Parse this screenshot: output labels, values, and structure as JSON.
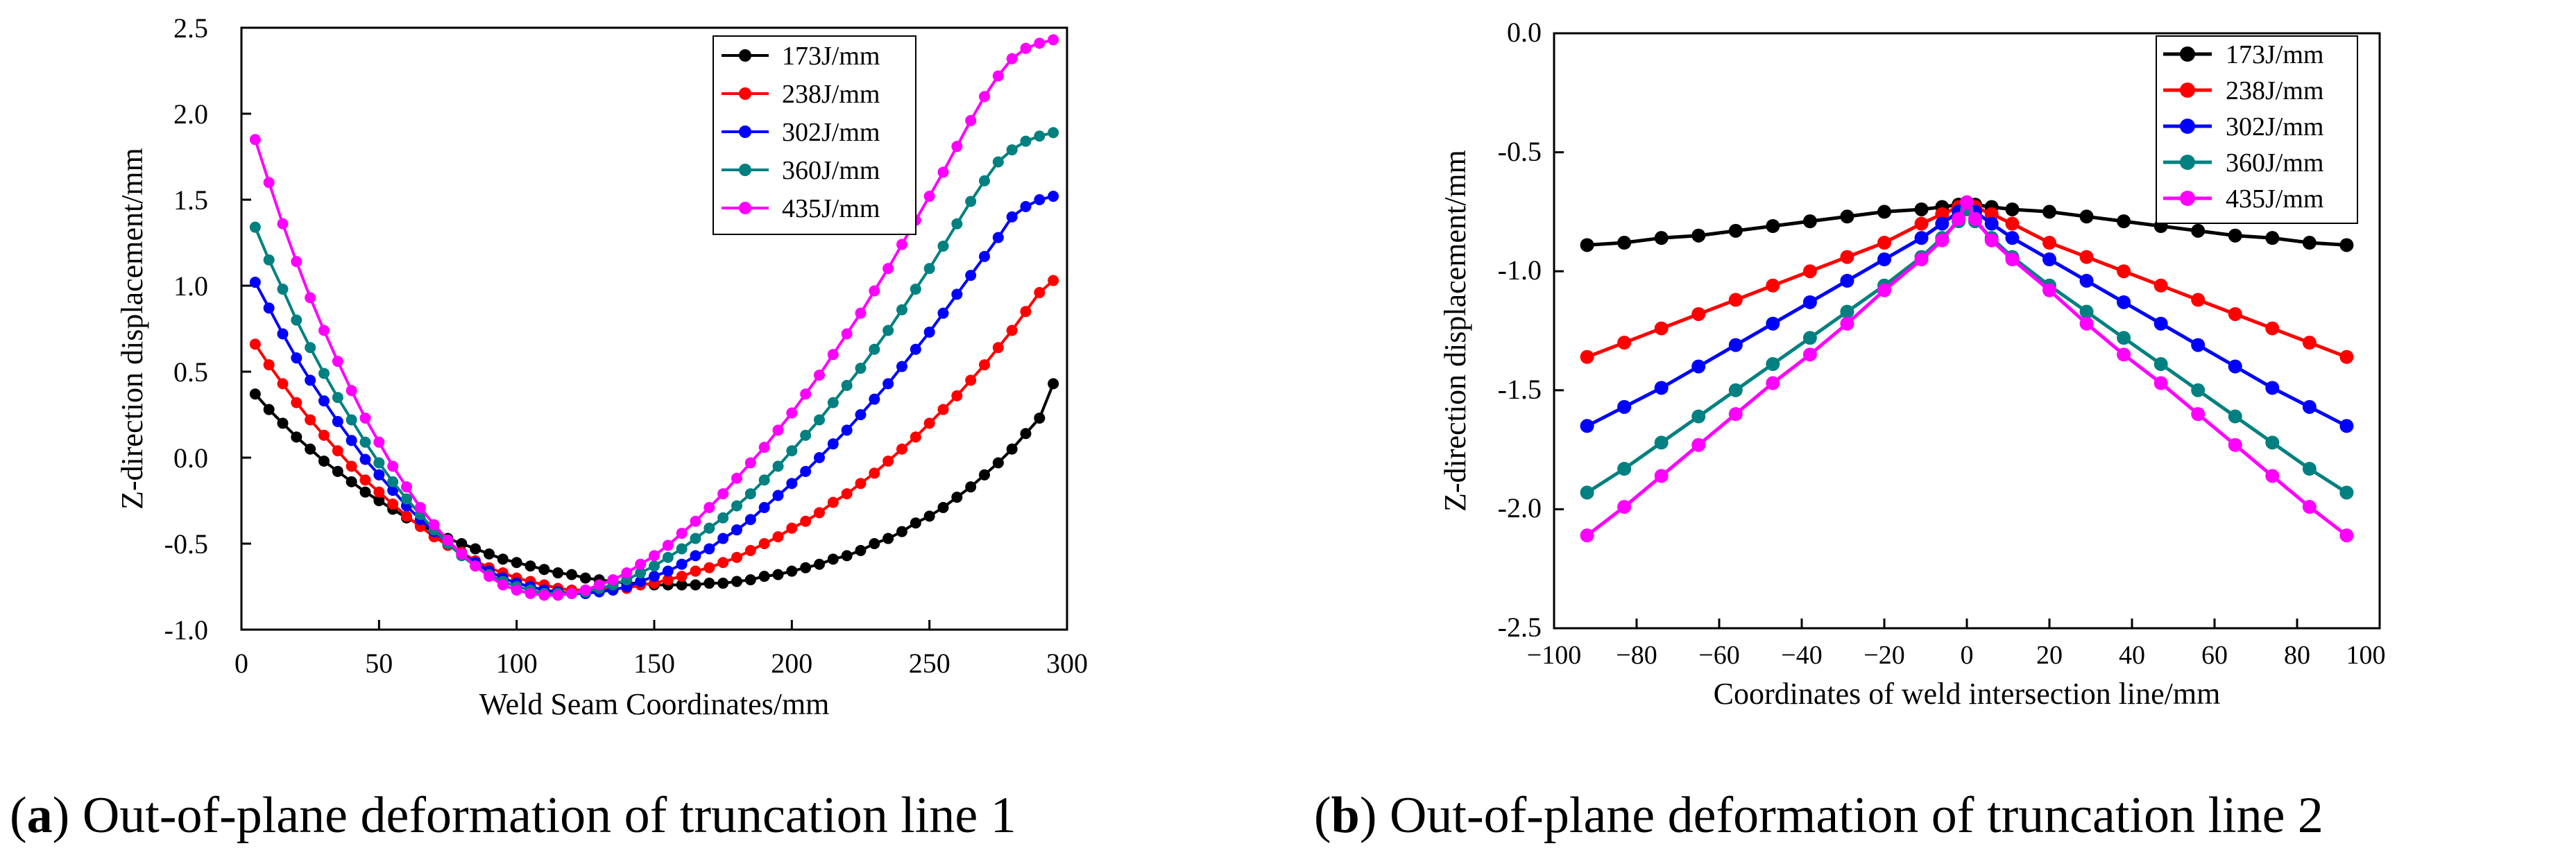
{
  "panels": [
    {
      "caption_letter": "a",
      "caption_text": " Out-of-plane deformation of truncation line 1",
      "chart": {
        "type": "line",
        "xlabel": "Weld Seam Coordinates/mm",
        "ylabel": "Z-direction displacement/mm",
        "xlim": [
          0,
          300
        ],
        "ylim": [
          -1.0,
          2.5
        ],
        "xticks": [
          "0",
          "50",
          "100",
          "150",
          "200",
          "250",
          "300"
        ],
        "yticks": [
          "-1.0",
          "-0.5",
          "0.0",
          "0.5",
          "1.0",
          "1.5",
          "2.0",
          "2.5"
        ],
        "legend_position": "top-right",
        "series": [
          {
            "name": "173J/mm",
            "color": "#000000"
          },
          {
            "name": "238J/mm",
            "color": "#ff0000"
          },
          {
            "name": "302J/mm",
            "color": "#0000ff"
          },
          {
            "name": "360J/mm",
            "color": "#008080"
          },
          {
            "name": "435J/mm",
            "color": "#ff00ff"
          }
        ]
      }
    },
    {
      "caption_letter": "b",
      "caption_text": " Out-of-plane deformation of truncation line 2",
      "chart": {
        "type": "line",
        "xlabel": "Coordinates of weld intersection line/mm",
        "ylabel": "Z-direction displacement/mm",
        "xlim": [
          -100,
          100
        ],
        "ylim": [
          -2.5,
          0.0
        ],
        "xticks": [
          "−100",
          "−80",
          "−60",
          "−40",
          "−20",
          "0",
          "20",
          "40",
          "60",
          "80",
          "100"
        ],
        "yticks": [
          "-2.5",
          "-2.0",
          "-1.5",
          "-1.0",
          "-0.5",
          "0.0"
        ],
        "legend_position": "top-right",
        "series": [
          {
            "name": "173J/mm",
            "color": "#000000"
          },
          {
            "name": "238J/mm",
            "color": "#ff0000"
          },
          {
            "name": "302J/mm",
            "color": "#0000ff"
          },
          {
            "name": "360J/mm",
            "color": "#008080"
          },
          {
            "name": "435J/mm",
            "color": "#ff00ff"
          }
        ]
      }
    }
  ],
  "chart_data": [
    {
      "type": "line",
      "xlabel": "Weld Seam Coordinates/mm",
      "ylabel": "Z-direction displacement/mm",
      "xlim": [
        0,
        300
      ],
      "ylim": [
        -1.0,
        2.5
      ],
      "legend": "top-right",
      "grid": false,
      "x": [
        5,
        10,
        15,
        20,
        25,
        30,
        35,
        40,
        45,
        50,
        55,
        60,
        65,
        70,
        75,
        80,
        85,
        90,
        95,
        100,
        105,
        110,
        115,
        120,
        125,
        130,
        135,
        140,
        145,
        150,
        155,
        160,
        165,
        170,
        175,
        180,
        185,
        190,
        195,
        200,
        205,
        210,
        215,
        220,
        225,
        230,
        235,
        240,
        245,
        250,
        255,
        260,
        265,
        270,
        275,
        280,
        285,
        290,
        295
      ],
      "series": [
        {
          "name": "173J/mm",
          "color": "#000000",
          "values": [
            0.37,
            0.28,
            0.2,
            0.12,
            0.05,
            -0.02,
            -0.08,
            -0.14,
            -0.2,
            -0.25,
            -0.3,
            -0.35,
            -0.39,
            -0.43,
            -0.47,
            -0.5,
            -0.53,
            -0.56,
            -0.59,
            -0.61,
            -0.63,
            -0.65,
            -0.67,
            -0.68,
            -0.7,
            -0.71,
            -0.72,
            -0.73,
            -0.73,
            -0.74,
            -0.74,
            -0.74,
            -0.74,
            -0.73,
            -0.73,
            -0.72,
            -0.71,
            -0.69,
            -0.68,
            -0.66,
            -0.64,
            -0.62,
            -0.59,
            -0.57,
            -0.54,
            -0.5,
            -0.47,
            -0.43,
            -0.38,
            -0.34,
            -0.29,
            -0.23,
            -0.17,
            -0.1,
            -0.03,
            0.05,
            0.14,
            0.23,
            0.43
          ]
        },
        {
          "name": "238J/mm",
          "color": "#ff0000",
          "values": [
            0.66,
            0.54,
            0.43,
            0.32,
            0.22,
            0.13,
            0.04,
            -0.05,
            -0.13,
            -0.2,
            -0.27,
            -0.34,
            -0.4,
            -0.46,
            -0.51,
            -0.55,
            -0.6,
            -0.64,
            -0.67,
            -0.7,
            -0.72,
            -0.74,
            -0.76,
            -0.77,
            -0.77,
            -0.77,
            -0.76,
            -0.76,
            -0.74,
            -0.73,
            -0.71,
            -0.69,
            -0.66,
            -0.64,
            -0.61,
            -0.58,
            -0.54,
            -0.5,
            -0.46,
            -0.41,
            -0.37,
            -0.32,
            -0.26,
            -0.21,
            -0.15,
            -0.09,
            -0.02,
            0.05,
            0.12,
            0.2,
            0.28,
            0.36,
            0.45,
            0.54,
            0.64,
            0.74,
            0.85,
            0.96,
            1.03
          ]
        },
        {
          "name": "302J/mm",
          "color": "#0000ff",
          "values": [
            1.02,
            0.87,
            0.72,
            0.58,
            0.45,
            0.33,
            0.21,
            0.1,
            -0.01,
            -0.1,
            -0.19,
            -0.28,
            -0.36,
            -0.43,
            -0.5,
            -0.56,
            -0.61,
            -0.66,
            -0.7,
            -0.73,
            -0.75,
            -0.77,
            -0.78,
            -0.79,
            -0.79,
            -0.78,
            -0.77,
            -0.75,
            -0.72,
            -0.69,
            -0.66,
            -0.62,
            -0.57,
            -0.53,
            -0.47,
            -0.42,
            -0.36,
            -0.29,
            -0.22,
            -0.15,
            -0.08,
            0.0,
            0.08,
            0.16,
            0.25,
            0.34,
            0.43,
            0.53,
            0.63,
            0.73,
            0.84,
            0.95,
            1.06,
            1.17,
            1.28,
            1.4,
            1.46,
            1.5,
            1.52
          ]
        },
        {
          "name": "360J/mm",
          "color": "#008080",
          "values": [
            1.34,
            1.15,
            0.98,
            0.8,
            0.64,
            0.49,
            0.35,
            0.22,
            0.09,
            -0.03,
            -0.14,
            -0.24,
            -0.33,
            -0.42,
            -0.5,
            -0.57,
            -0.63,
            -0.68,
            -0.72,
            -0.75,
            -0.77,
            -0.79,
            -0.79,
            -0.79,
            -0.78,
            -0.76,
            -0.74,
            -0.71,
            -0.67,
            -0.63,
            -0.58,
            -0.53,
            -0.47,
            -0.41,
            -0.35,
            -0.28,
            -0.21,
            -0.13,
            -0.05,
            0.04,
            0.13,
            0.22,
            0.32,
            0.42,
            0.52,
            0.63,
            0.74,
            0.86,
            0.98,
            1.1,
            1.23,
            1.36,
            1.49,
            1.61,
            1.72,
            1.79,
            1.84,
            1.87,
            1.89
          ]
        },
        {
          "name": "435J/mm",
          "color": "#ff00ff",
          "values": [
            1.85,
            1.6,
            1.36,
            1.14,
            0.93,
            0.74,
            0.56,
            0.39,
            0.23,
            0.09,
            -0.05,
            -0.17,
            -0.29,
            -0.39,
            -0.48,
            -0.56,
            -0.63,
            -0.69,
            -0.74,
            -0.77,
            -0.79,
            -0.8,
            -0.8,
            -0.79,
            -0.77,
            -0.74,
            -0.71,
            -0.67,
            -0.62,
            -0.57,
            -0.51,
            -0.44,
            -0.37,
            -0.29,
            -0.21,
            -0.12,
            -0.03,
            0.06,
            0.16,
            0.26,
            0.37,
            0.48,
            0.6,
            0.72,
            0.84,
            0.97,
            1.1,
            1.24,
            1.38,
            1.52,
            1.66,
            1.81,
            1.96,
            2.1,
            2.22,
            2.32,
            2.38,
            2.41,
            2.43
          ]
        }
      ]
    },
    {
      "type": "line",
      "xlabel": "Coordinates of weld intersection line/mm",
      "ylabel": "Z-direction displacement/mm",
      "xlim": [
        -100,
        100
      ],
      "ylim": [
        -2.5,
        0.0
      ],
      "legend": "top-right",
      "grid": false,
      "x": [
        -92,
        -83,
        -74,
        -65,
        -56,
        -47,
        -38,
        -29,
        -20,
        -11,
        -6,
        -2,
        0,
        2,
        6,
        11,
        20,
        29,
        38,
        47,
        56,
        65,
        74,
        83,
        92
      ],
      "series": [
        {
          "name": "173J/mm",
          "color": "#000000",
          "values": [
            -0.89,
            -0.88,
            -0.86,
            -0.85,
            -0.83,
            -0.81,
            -0.79,
            -0.77,
            -0.75,
            -0.74,
            -0.73,
            -0.72,
            -0.72,
            -0.72,
            -0.73,
            -0.74,
            -0.75,
            -0.77,
            -0.79,
            -0.81,
            -0.83,
            -0.85,
            -0.86,
            -0.88,
            -0.89
          ]
        },
        {
          "name": "238J/mm",
          "color": "#ff0000",
          "values": [
            -1.36,
            -1.3,
            -1.24,
            -1.18,
            -1.12,
            -1.06,
            -1.0,
            -0.94,
            -0.88,
            -0.8,
            -0.76,
            -0.73,
            -0.72,
            -0.73,
            -0.76,
            -0.8,
            -0.88,
            -0.94,
            -1.0,
            -1.06,
            -1.12,
            -1.18,
            -1.24,
            -1.3,
            -1.36
          ]
        },
        {
          "name": "302J/mm",
          "color": "#0000ff",
          "values": [
            -1.65,
            -1.57,
            -1.49,
            -1.4,
            -1.31,
            -1.22,
            -1.13,
            -1.04,
            -0.95,
            -0.86,
            -0.8,
            -0.75,
            -0.73,
            -0.75,
            -0.8,
            -0.86,
            -0.95,
            -1.04,
            -1.13,
            -1.22,
            -1.31,
            -1.4,
            -1.49,
            -1.57,
            -1.65
          ]
        },
        {
          "name": "360J/mm",
          "color": "#008080",
          "values": [
            -1.93,
            -1.83,
            -1.72,
            -1.61,
            -1.5,
            -1.39,
            -1.28,
            -1.17,
            -1.06,
            -0.94,
            -0.86,
            -0.79,
            -0.74,
            -0.79,
            -0.86,
            -0.94,
            -1.06,
            -1.17,
            -1.28,
            -1.39,
            -1.5,
            -1.61,
            -1.72,
            -1.83,
            -1.93
          ]
        },
        {
          "name": "435J/mm",
          "color": "#ff00ff",
          "values": [
            -2.11,
            -1.99,
            -1.86,
            -1.73,
            -1.6,
            -1.47,
            -1.35,
            -1.22,
            -1.08,
            -0.95,
            -0.87,
            -0.78,
            -0.71,
            -0.78,
            -0.87,
            -0.95,
            -1.08,
            -1.22,
            -1.35,
            -1.47,
            -1.6,
            -1.73,
            -1.86,
            -1.99,
            -2.11
          ]
        }
      ]
    }
  ]
}
